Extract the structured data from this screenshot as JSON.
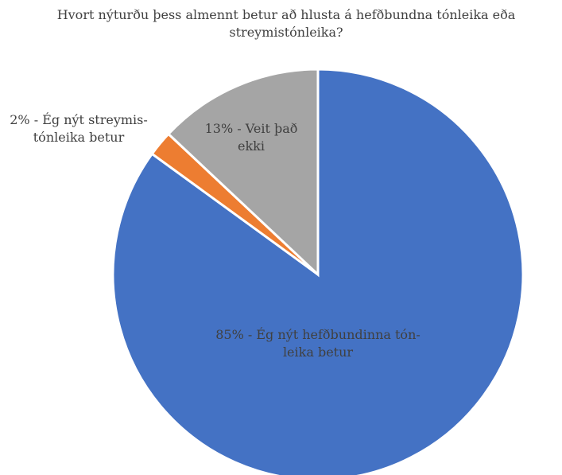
{
  "chart_data": {
    "type": "pie",
    "title_lines": [
      "Hvort nýturðu þess almennt betur að hlusta á hefðbundna tónleika eða",
      "streymistónleika?"
    ],
    "start_angle_deg": 0,
    "direction": "clockwise",
    "legend": "none",
    "slices": [
      {
        "value": 85,
        "color": "#4472c4",
        "label_lines": [
          "85% - Ég nýt hefðbundinna tón-",
          "leika betur"
        ]
      },
      {
        "value": 2,
        "color": "#ed7d31",
        "label_lines": [
          "2% - Ég nýt streymis-",
          "tónleika betur"
        ]
      },
      {
        "value": 13,
        "color": "#a5a5a5",
        "label_lines": [
          "13% - Veit það",
          "ekki"
        ]
      }
    ]
  }
}
